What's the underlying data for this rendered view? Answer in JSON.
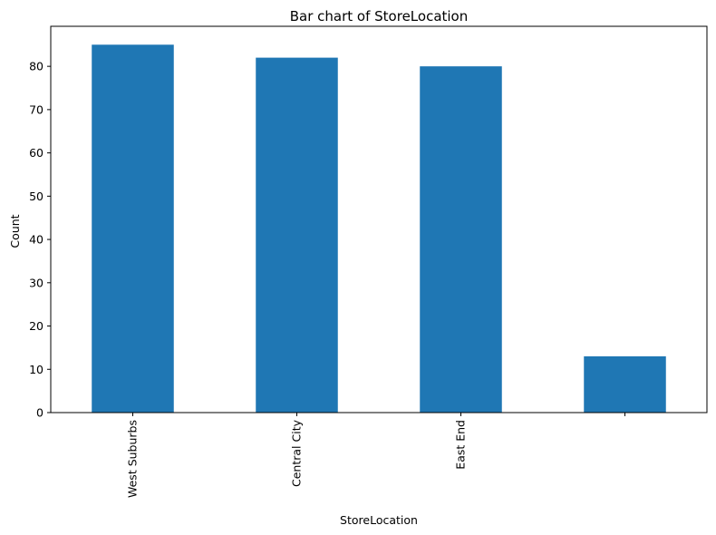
{
  "chart_data": {
    "type": "bar",
    "title": "Bar chart of StoreLocation",
    "xlabel": "StoreLocation",
    "ylabel": "Count",
    "categories": [
      "West Suburbs",
      "Central City",
      "East End",
      ""
    ],
    "values": [
      85,
      82,
      80,
      13
    ],
    "ylim": [
      0,
      89.25
    ],
    "yticks": [
      0,
      10,
      20,
      30,
      40,
      50,
      60,
      70,
      80
    ],
    "bar_color": "#1f77b4",
    "grid": false,
    "legend": "none"
  }
}
